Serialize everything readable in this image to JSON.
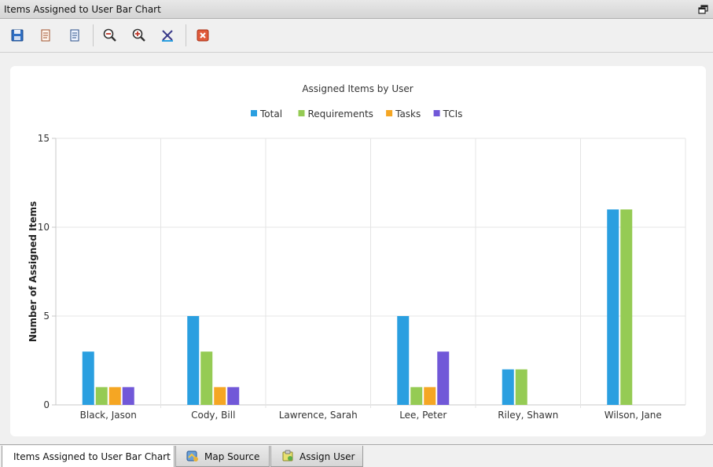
{
  "window": {
    "title": "Items Assigned to User Bar Chart"
  },
  "toolbar": {
    "buttons": [
      {
        "name": "save-button",
        "icon": "floppy-disk-icon"
      },
      {
        "name": "copy-button",
        "icon": "document-copy-icon"
      },
      {
        "name": "document-button",
        "icon": "document-icon"
      },
      {
        "name": "zoom-out-button",
        "icon": "zoom-out-icon"
      },
      {
        "name": "zoom-in-button",
        "icon": "zoom-in-icon"
      },
      {
        "name": "reset-zoom-button",
        "icon": "reset-zoom-icon"
      },
      {
        "name": "close-button",
        "icon": "close-icon"
      }
    ]
  },
  "tabs": [
    {
      "label": "Items Assigned to User Bar Chart",
      "active": true,
      "icon": ""
    },
    {
      "label": "Map Source",
      "active": false,
      "icon": "map-icon"
    },
    {
      "label": "Assign User",
      "active": false,
      "icon": "assign-user-icon"
    }
  ],
  "chart_data": {
    "type": "bar",
    "title": "Assigned Items by User",
    "xlabel": "",
    "ylabel": "Number of Assigned Items",
    "ylim": [
      0,
      15
    ],
    "yticks": [
      0,
      5,
      10,
      15
    ],
    "grid": true,
    "legend_position": "top",
    "categories": [
      "Black, Jason",
      "Cody, Bill",
      "Lawrence, Sarah",
      "Lee, Peter",
      "Riley, Shawn",
      "Wilson, Jane"
    ],
    "series": [
      {
        "name": "Total",
        "color": "#2a9fe0",
        "values": [
          3,
          5,
          0,
          5,
          2,
          11
        ]
      },
      {
        "name": "Requirements",
        "color": "#95cb54",
        "values": [
          1,
          3,
          0,
          1,
          2,
          11
        ]
      },
      {
        "name": "Tasks",
        "color": "#f5a623",
        "values": [
          1,
          1,
          0,
          1,
          0,
          0
        ]
      },
      {
        "name": "TCIs",
        "color": "#7158d8",
        "values": [
          1,
          1,
          0,
          3,
          0,
          0
        ]
      }
    ]
  }
}
